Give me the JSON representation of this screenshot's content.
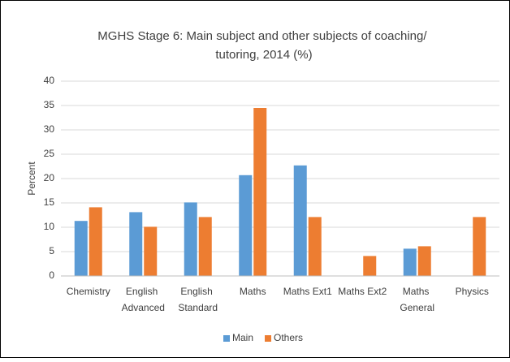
{
  "chart_data": {
    "type": "bar",
    "title": "MGHS Stage 6: Main subject and other subjects of coaching/ tutoring, 2014 (%)",
    "y_label": "Percent",
    "categories": [
      "Chemistry",
      "English Advanced",
      "English Standard",
      "Maths",
      "Maths Ext1",
      "Maths Ext2",
      "Maths General",
      "Physics"
    ],
    "series": [
      {
        "name": "Main",
        "color": "#5b9bd5",
        "values": [
          11.3,
          13.1,
          15.1,
          20.7,
          22.7,
          null,
          5.6,
          null
        ]
      },
      {
        "name": "Others",
        "color": "#ed7d31",
        "values": [
          14.1,
          10.1,
          12.1,
          34.5,
          12.1,
          4.1,
          6.1,
          12.1
        ]
      }
    ],
    "ylim": [
      0,
      40
    ],
    "yticks": [
      0,
      5,
      10,
      15,
      20,
      25,
      30,
      35,
      40
    ],
    "grid": true,
    "legend": "bottom"
  }
}
